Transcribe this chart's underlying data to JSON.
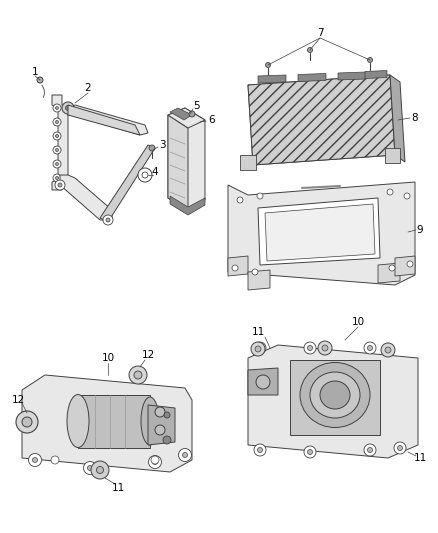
{
  "bg_color": "#ffffff",
  "line_color": "#404040",
  "gray_fill": "#c8c8c8",
  "light_fill": "#e8e8e8",
  "dark_fill": "#888888",
  "label_fontsize": 7.5,
  "parts": {
    "bracket_group": "top-left",
    "ecu_group": "top-right",
    "motor_left": "bottom-left",
    "motor_right": "bottom-right"
  }
}
